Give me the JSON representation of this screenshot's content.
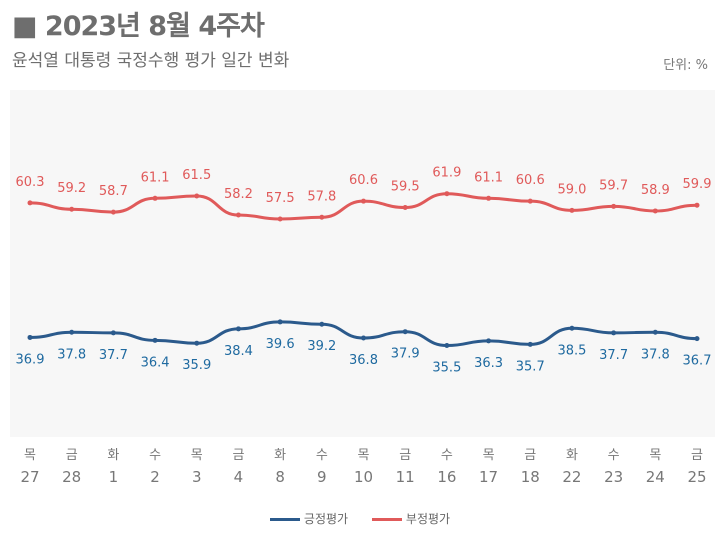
{
  "header": {
    "title": "■ 2023년 8월 4주차",
    "subtitle": "윤석열 대통령 국정수행 평가 일간 변화",
    "unit": "단위: %"
  },
  "chart_data": {
    "type": "line",
    "categories": [
      [
        "목",
        "27"
      ],
      [
        "금",
        "28"
      ],
      [
        "화",
        "1"
      ],
      [
        "수",
        "2"
      ],
      [
        "목",
        "3"
      ],
      [
        "금",
        "4"
      ],
      [
        "화",
        "8"
      ],
      [
        "수",
        "9"
      ],
      [
        "목",
        "10"
      ],
      [
        "금",
        "11"
      ],
      [
        "수",
        "16"
      ],
      [
        "목",
        "17"
      ],
      [
        "금",
        "18"
      ],
      [
        "화",
        "22"
      ],
      [
        "수",
        "23"
      ],
      [
        "목",
        "24"
      ],
      [
        "금",
        "25"
      ]
    ],
    "series": [
      {
        "name": "긍정평가",
        "color": "#2b5a8c",
        "label_color": "#1f6aa0",
        "values": [
          36.9,
          37.8,
          37.7,
          36.4,
          35.9,
          38.4,
          39.6,
          39.2,
          36.8,
          37.9,
          35.5,
          36.3,
          35.7,
          38.5,
          37.7,
          37.8,
          36.7
        ]
      },
      {
        "name": "부정평가",
        "color": "#e05a5a",
        "label_color": "#e05a5a",
        "values": [
          60.3,
          59.2,
          58.7,
          61.1,
          61.5,
          58.2,
          57.5,
          57.8,
          60.6,
          59.5,
          61.9,
          61.1,
          60.6,
          59.0,
          59.7,
          58.9,
          59.9
        ]
      }
    ],
    "grid": false,
    "legend": "bottom",
    "background": "#f7f7f7"
  }
}
